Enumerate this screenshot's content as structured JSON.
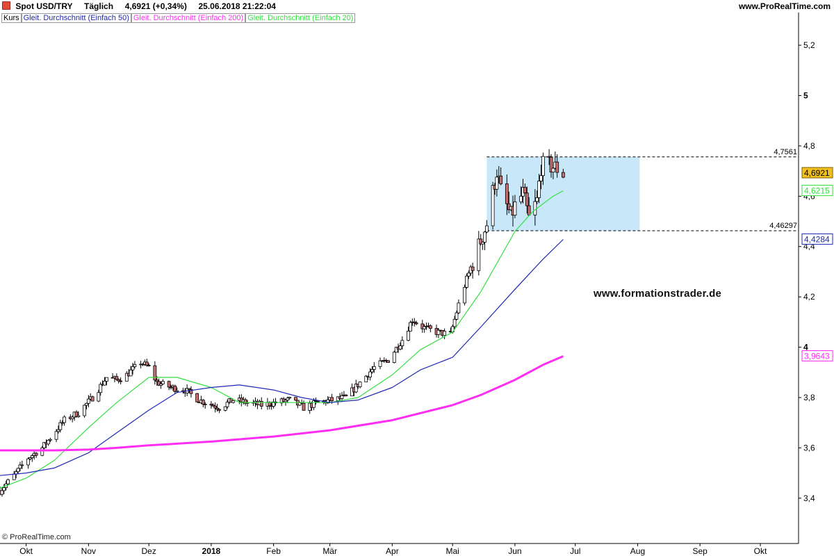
{
  "header": {
    "instrument": "Spot USD/TRY",
    "period": "Täglich",
    "last_quote": "4,6921 (+0,34%)",
    "datetime": "25.06.2018 21:22:04",
    "site": "www.ProRealTime.com"
  },
  "legend": {
    "kurs": "Kurs",
    "sma50": "Gleit. Durchschnitt (Einfach 50)",
    "sma200": "Gleit. Durchschnitt (Einfach 200)",
    "sma20": "Gleit. Durchschnitt (Einfach 20)"
  },
  "copyright": "© ProRealTime.com",
  "watermark": "www.formationstrader.de",
  "colors": {
    "bull_fill": "#ffffff",
    "bear_fill": "#c87070",
    "candle_outline": "#000000",
    "sma20": "#33e040",
    "sma50": "#1e28b4",
    "sma200": "#ff2ef2",
    "range_box": "#c8e8fa",
    "last_price_badge": "#f0c020"
  },
  "chart_data": {
    "type": "candlestick",
    "title": "Spot USD/TRY",
    "x_axis": {
      "type": "date",
      "range": [
        "2017-09-18",
        "2018-10-20"
      ],
      "ticks": [
        {
          "date": "2017-10-01",
          "label": "Okt",
          "bold": false
        },
        {
          "date": "2017-11-01",
          "label": "Nov",
          "bold": false
        },
        {
          "date": "2017-12-01",
          "label": "Dez",
          "bold": false
        },
        {
          "date": "2018-01-01",
          "label": "2018",
          "bold": true
        },
        {
          "date": "2018-02-01",
          "label": "Feb",
          "bold": false
        },
        {
          "date": "2018-03-01",
          "label": "Mär",
          "bold": false
        },
        {
          "date": "2018-04-01",
          "label": "Apr",
          "bold": false
        },
        {
          "date": "2018-05-01",
          "label": "Mai",
          "bold": false
        },
        {
          "date": "2018-06-01",
          "label": "Jun",
          "bold": false
        },
        {
          "date": "2018-07-01",
          "label": "Jul",
          "bold": false
        },
        {
          "date": "2018-08-01",
          "label": "Aug",
          "bold": false
        },
        {
          "date": "2018-09-01",
          "label": "Sep",
          "bold": false
        },
        {
          "date": "2018-10-01",
          "label": "Okt",
          "bold": false
        }
      ]
    },
    "y_axis": {
      "range": [
        3.22,
        5.33
      ],
      "position": "right",
      "ticks": [
        {
          "value": 3.4,
          "label": "3,4",
          "bold": false
        },
        {
          "value": 3.6,
          "label": "3,6",
          "bold": false
        },
        {
          "value": 3.8,
          "label": "3,8",
          "bold": false
        },
        {
          "value": 4.0,
          "label": "4",
          "bold": true
        },
        {
          "value": 4.2,
          "label": "4,2",
          "bold": false
        },
        {
          "value": 4.4,
          "label": "4,4",
          "bold": false
        },
        {
          "value": 4.6,
          "label": "4,6",
          "bold": false
        },
        {
          "value": 4.8,
          "label": "4,8",
          "bold": false
        },
        {
          "value": 5.0,
          "label": "5",
          "bold": true
        },
        {
          "value": 5.2,
          "label": "5,2",
          "bold": false
        }
      ]
    },
    "grid": false,
    "price_path": [
      [
        "2017-09-18",
        3.43
      ],
      [
        "2017-09-25",
        3.49
      ],
      [
        "2017-10-02",
        3.56
      ],
      [
        "2017-10-09",
        3.6
      ],
      [
        "2017-10-16",
        3.67
      ],
      [
        "2017-10-20",
        3.71
      ],
      [
        "2017-10-27",
        3.74
      ],
      [
        "2017-11-03",
        3.8
      ],
      [
        "2017-11-10",
        3.88
      ],
      [
        "2017-11-15",
        3.87
      ],
      [
        "2017-11-20",
        3.89
      ],
      [
        "2017-11-27",
        3.94
      ],
      [
        "2017-12-01",
        3.92
      ],
      [
        "2017-12-05",
        3.86
      ],
      [
        "2017-12-12",
        3.84
      ],
      [
        "2017-12-19",
        3.83
      ],
      [
        "2017-12-26",
        3.79
      ],
      [
        "2018-01-05",
        3.76
      ],
      [
        "2018-01-12",
        3.79
      ],
      [
        "2018-01-19",
        3.78
      ],
      [
        "2018-01-26",
        3.77
      ],
      [
        "2018-02-02",
        3.78
      ],
      [
        "2018-02-09",
        3.79
      ],
      [
        "2018-02-16",
        3.76
      ],
      [
        "2018-02-23",
        3.78
      ],
      [
        "2018-03-02",
        3.79
      ],
      [
        "2018-03-09",
        3.8
      ],
      [
        "2018-03-16",
        3.86
      ],
      [
        "2018-03-23",
        3.92
      ],
      [
        "2018-03-30",
        3.95
      ],
      [
        "2018-04-06",
        4.03
      ],
      [
        "2018-04-11",
        4.11
      ],
      [
        "2018-04-16",
        4.08
      ],
      [
        "2018-04-23",
        4.06
      ],
      [
        "2018-04-30",
        4.05
      ],
      [
        "2018-05-04",
        4.17
      ],
      [
        "2018-05-08",
        4.27
      ],
      [
        "2018-05-14",
        4.4
      ],
      [
        "2018-05-18",
        4.49
      ],
      [
        "2018-05-23",
        4.7
      ],
      [
        "2018-05-25",
        4.62
      ],
      [
        "2018-05-30",
        4.52
      ],
      [
        "2018-06-01",
        4.56
      ],
      [
        "2018-06-05",
        4.61
      ],
      [
        "2018-06-08",
        4.51
      ],
      [
        "2018-06-12",
        4.58
      ],
      [
        "2018-06-14",
        4.72
      ],
      [
        "2018-06-19",
        4.72
      ],
      [
        "2018-06-22",
        4.71
      ],
      [
        "2018-06-25",
        4.69
      ]
    ],
    "series": [
      {
        "name": "Gleit. Durchschnitt (Einfach 20)",
        "color": "#33e040",
        "points": [
          [
            "2017-09-18",
            3.44
          ],
          [
            "2017-10-01",
            3.48
          ],
          [
            "2017-10-15",
            3.55
          ],
          [
            "2017-11-01",
            3.68
          ],
          [
            "2017-11-15",
            3.78
          ],
          [
            "2017-12-01",
            3.88
          ],
          [
            "2017-12-15",
            3.88
          ],
          [
            "2018-01-01",
            3.84
          ],
          [
            "2018-01-15",
            3.78
          ],
          [
            "2018-02-01",
            3.78
          ],
          [
            "2018-02-15",
            3.78
          ],
          [
            "2018-03-01",
            3.78
          ],
          [
            "2018-03-15",
            3.8
          ],
          [
            "2018-04-01",
            3.89
          ],
          [
            "2018-04-15",
            3.99
          ],
          [
            "2018-05-01",
            4.06
          ],
          [
            "2018-05-15",
            4.22
          ],
          [
            "2018-06-01",
            4.46
          ],
          [
            "2018-06-10",
            4.54
          ],
          [
            "2018-06-20",
            4.6
          ],
          [
            "2018-06-25",
            4.6215
          ]
        ]
      },
      {
        "name": "Gleit. Durchschnitt (Einfach 50)",
        "color": "#1e28b4",
        "points": [
          [
            "2017-09-18",
            3.49
          ],
          [
            "2017-10-01",
            3.5
          ],
          [
            "2017-10-15",
            3.52
          ],
          [
            "2017-11-01",
            3.58
          ],
          [
            "2017-11-15",
            3.66
          ],
          [
            "2017-12-01",
            3.75
          ],
          [
            "2017-12-15",
            3.82
          ],
          [
            "2018-01-01",
            3.84
          ],
          [
            "2018-01-15",
            3.85
          ],
          [
            "2018-02-01",
            3.83
          ],
          [
            "2018-02-15",
            3.8
          ],
          [
            "2018-03-01",
            3.78
          ],
          [
            "2018-03-15",
            3.79
          ],
          [
            "2018-04-01",
            3.84
          ],
          [
            "2018-04-15",
            3.91
          ],
          [
            "2018-05-01",
            3.96
          ],
          [
            "2018-05-15",
            4.08
          ],
          [
            "2018-06-01",
            4.23
          ],
          [
            "2018-06-15",
            4.35
          ],
          [
            "2018-06-25",
            4.4284
          ]
        ]
      },
      {
        "name": "Gleit. Durchschnitt (Einfach 200)",
        "color": "#ff2ef2",
        "points": [
          [
            "2017-09-18",
            3.59
          ],
          [
            "2017-10-15",
            3.59
          ],
          [
            "2017-11-01",
            3.593
          ],
          [
            "2017-11-15",
            3.6
          ],
          [
            "2017-12-01",
            3.61
          ],
          [
            "2018-01-01",
            3.625
          ],
          [
            "2018-02-01",
            3.645
          ],
          [
            "2018-03-01",
            3.67
          ],
          [
            "2018-04-01",
            3.71
          ],
          [
            "2018-05-01",
            3.77
          ],
          [
            "2018-05-15",
            3.81
          ],
          [
            "2018-06-01",
            3.87
          ],
          [
            "2018-06-15",
            3.93
          ],
          [
            "2018-06-25",
            3.9643
          ]
        ]
      }
    ],
    "annotations": {
      "range_box": {
        "from": "2018-05-18",
        "to": "2018-08-02",
        "low": 4.46297,
        "high": 4.7561
      },
      "resistance": {
        "value": 4.7561,
        "label": "4,7561"
      },
      "support": {
        "value": 4.46297,
        "label": "4,46297"
      },
      "line_start": "2018-05-18"
    },
    "value_badges": [
      {
        "value": 4.6921,
        "label": "4,6921",
        "kind": "last"
      },
      {
        "value": 4.6215,
        "label": "4,6215",
        "kind": "sma20"
      },
      {
        "value": 4.4284,
        "label": "4,4284",
        "kind": "sma50"
      },
      {
        "value": 3.9643,
        "label": "3,9643",
        "kind": "sma200"
      }
    ]
  }
}
